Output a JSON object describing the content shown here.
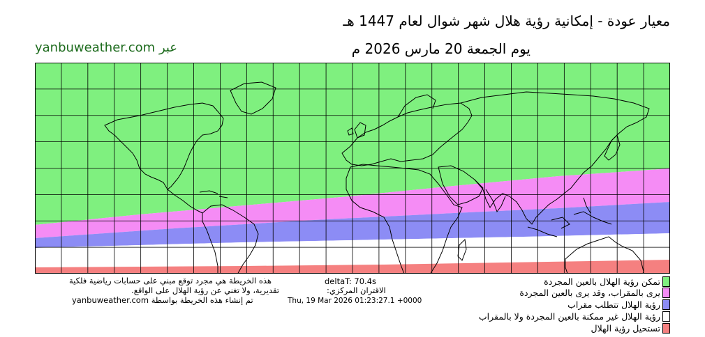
{
  "header": {
    "title": "معيار عودة - إمكانية رؤية هلال شهر شوال لعام 1447 هـ",
    "date": "يوم الجمعة 20 مارس 2026 م",
    "via": "عبر yanbuweather.com"
  },
  "footer": {
    "disclaimer_1": "هذه الخريطة هي مجرد توقع مبني على حسابات رياضية فلكية",
    "disclaimer_2": "تقديرية، ولا تغني عن رؤية الهلال على الواقع.",
    "credit": "yanbuweather.com تم إنشاء هذه الخريطة بواسطة",
    "deltat": "deltaT: 70.4s",
    "conjunction_label": "الاقتران المركزي:",
    "conjunction_time": "Thu, 19 Mar 2026 01:23:27.1 +0000"
  },
  "legend": [
    {
      "label": "تمكن رؤية الهلال بالعين المجردة",
      "color": "#7ff07f"
    },
    {
      "label": "يرى بالمقراب، وقد يرى بالعين المجردة",
      "color": "#f58cf5"
    },
    {
      "label": "رؤية الهلال تتطلب مقراب",
      "color": "#8c8cf5"
    },
    {
      "label": "رؤية الهلال غير ممكنة بالعين المجردة ولا بالمقراب",
      "color": "#ffffff"
    },
    {
      "label": "تستحيل رؤية الهلال",
      "color": "#f58080"
    }
  ],
  "map": {
    "projection": "equirectangular",
    "lon_range": [
      -180,
      180
    ],
    "lat_range": [
      -60,
      60
    ],
    "grid_step_deg": 15,
    "colors": {
      "naked_eye": "#7ff07f",
      "optical_may_naked": "#f58cf5",
      "optical_only": "#8c8cf5",
      "not_visible": "#ffffff",
      "impossible": "#f58080",
      "coast": "#000000",
      "grid": "#000000"
    }
  }
}
